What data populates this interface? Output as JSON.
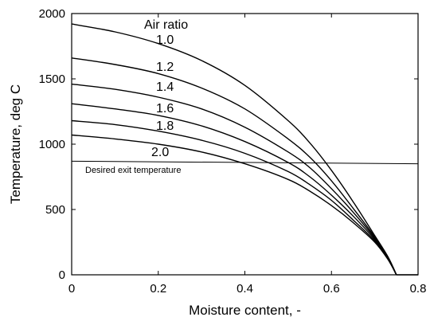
{
  "chart_data": {
    "type": "line",
    "title": "",
    "xlabel": "Moisture content, -",
    "ylabel": "Temperature, deg C",
    "xlim": [
      0,
      0.8
    ],
    "ylim": [
      0,
      2000
    ],
    "xticks": [
      0,
      0.2,
      0.4,
      0.6,
      0.8
    ],
    "xtick_labels": [
      "0",
      "0.2",
      "0.4",
      "0.6",
      "0.8"
    ],
    "yticks": [
      0,
      500,
      1000,
      1500,
      2000
    ],
    "ytick_labels": [
      "0",
      "500",
      "1000",
      "1500",
      "2000"
    ],
    "grid": false,
    "legend": "none",
    "legend_title": "Air ratio",
    "series": [
      {
        "name": "1.0",
        "x": [
          0,
          0.1,
          0.2,
          0.3,
          0.4,
          0.5,
          0.55,
          0.6,
          0.65,
          0.7,
          0.73,
          0.75
        ],
        "y": [
          1920,
          1860,
          1770,
          1640,
          1450,
          1180,
          1010,
          800,
          560,
          300,
          140,
          0
        ]
      },
      {
        "name": "1.2",
        "x": [
          0,
          0.1,
          0.2,
          0.3,
          0.4,
          0.5,
          0.55,
          0.6,
          0.65,
          0.7,
          0.73,
          0.75
        ],
        "y": [
          1660,
          1610,
          1540,
          1430,
          1270,
          1040,
          900,
          720,
          510,
          290,
          140,
          0
        ]
      },
      {
        "name": "1.4",
        "x": [
          0,
          0.1,
          0.2,
          0.3,
          0.4,
          0.5,
          0.55,
          0.6,
          0.65,
          0.7,
          0.73,
          0.75
        ],
        "y": [
          1460,
          1420,
          1360,
          1270,
          1130,
          940,
          820,
          660,
          480,
          280,
          135,
          0
        ]
      },
      {
        "name": "1.6",
        "x": [
          0,
          0.1,
          0.2,
          0.3,
          0.4,
          0.5,
          0.55,
          0.6,
          0.65,
          0.7,
          0.73,
          0.75
        ],
        "y": [
          1310,
          1270,
          1220,
          1140,
          1020,
          860,
          750,
          610,
          450,
          270,
          130,
          0
        ]
      },
      {
        "name": "1.8",
        "x": [
          0,
          0.1,
          0.2,
          0.3,
          0.4,
          0.5,
          0.55,
          0.6,
          0.65,
          0.7,
          0.73,
          0.75
        ],
        "y": [
          1180,
          1150,
          1100,
          1030,
          930,
          790,
          690,
          570,
          420,
          260,
          125,
          0
        ]
      },
      {
        "name": "2.0",
        "x": [
          0,
          0.1,
          0.2,
          0.3,
          0.4,
          0.5,
          0.55,
          0.6,
          0.65,
          0.7,
          0.73,
          0.75
        ],
        "y": [
          1070,
          1040,
          1000,
          940,
          850,
          730,
          640,
          530,
          400,
          250,
          120,
          0
        ]
      }
    ],
    "reference_line": {
      "label": "Desired exit temperature",
      "x": [
        0,
        0.8
      ],
      "y": [
        870,
        850
      ]
    },
    "tail": {
      "x": [
        0.75,
        0.8
      ],
      "y": [
        0,
        0
      ]
    }
  }
}
